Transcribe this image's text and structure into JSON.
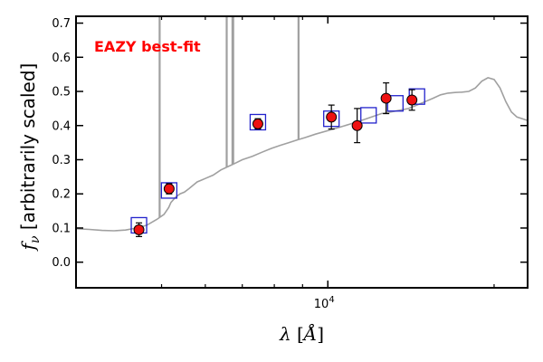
{
  "chart_data": {
    "type": "scatter",
    "title": "",
    "annotation": "EAZY best-fit",
    "annotation_color": "#ff0000",
    "xlabel": "λ [Å]",
    "ylabel": "f_ν [arbitrarily scaled]",
    "x_scale": "log",
    "xlim": [
      3500,
      23000
    ],
    "ylim": [
      -0.075,
      0.72
    ],
    "x_major_ticks": [
      {
        "value": 10000,
        "label": "10",
        "exponent": "4"
      }
    ],
    "x_minor_ticks": [
      5000,
      6000,
      7000,
      8000,
      9000,
      20000
    ],
    "y_ticks": [
      0.0,
      0.1,
      0.2,
      0.3,
      0.4,
      0.5,
      0.6,
      0.7
    ],
    "y_tick_labels": [
      "0.0",
      "0.1",
      "0.2",
      "0.3",
      "0.4",
      "0.5",
      "0.6",
      "0.7"
    ],
    "grid": false,
    "colors": {
      "model_line": "#a0a0a0",
      "observed_fill": "#ee1111",
      "model_box": "#2222cc",
      "errorbar": "#000000"
    },
    "series": [
      {
        "kind": "line",
        "x": [
          3500,
          3700,
          3900,
          4100,
          4300,
          4500,
          4700,
          4900,
          5050,
          5150,
          5200,
          5300,
          5400,
          5500,
          5600,
          5700,
          5800,
          5900,
          6000,
          6200,
          6400,
          6600,
          6800,
          7000,
          7300,
          7600,
          7900,
          8200,
          8500,
          8800,
          9100,
          9500,
          10000,
          10500,
          11000,
          11500,
          12000,
          12500,
          13000,
          13500,
          14000,
          14500,
          15000,
          15500,
          16000,
          16500,
          17000,
          17500,
          18000,
          18500,
          19000,
          19500,
          20000,
          20500,
          21000,
          21500,
          22000,
          23000
        ],
        "y": [
          0.098,
          0.096,
          0.093,
          0.092,
          0.094,
          0.1,
          0.108,
          0.125,
          0.14,
          0.16,
          0.175,
          0.19,
          0.2,
          0.205,
          0.215,
          0.225,
          0.235,
          0.24,
          0.245,
          0.255,
          0.27,
          0.28,
          0.29,
          0.3,
          0.31,
          0.322,
          0.333,
          0.342,
          0.35,
          0.358,
          0.365,
          0.375,
          0.385,
          0.395,
          0.405,
          0.415,
          0.425,
          0.435,
          0.44,
          0.445,
          0.45,
          0.46,
          0.47,
          0.48,
          0.49,
          0.495,
          0.497,
          0.498,
          0.5,
          0.51,
          0.53,
          0.54,
          0.535,
          0.51,
          0.47,
          0.44,
          0.425,
          0.415
        ]
      },
      {
        "kind": "emission-lines",
        "x": [
          4960,
          6560,
          6720,
          6740,
          8850
        ],
        "y": [
          0.72,
          0.72,
          0.72,
          0.72,
          0.72
        ]
      },
      {
        "kind": "model-box",
        "x": [
          4550,
          5160,
          7470,
          10150,
          11850,
          13250,
          14500
        ],
        "y": [
          0.108,
          0.21,
          0.41,
          0.42,
          0.43,
          0.465,
          0.485
        ]
      },
      {
        "kind": "points-with-errors",
        "x": [
          4550,
          5160,
          7470,
          10150,
          11300,
          12750,
          14200
        ],
        "y": [
          0.095,
          0.215,
          0.405,
          0.425,
          0.4,
          0.48,
          0.475
        ],
        "err": [
          0.02,
          0.015,
          0.015,
          0.035,
          0.05,
          0.045,
          0.03
        ]
      }
    ]
  }
}
